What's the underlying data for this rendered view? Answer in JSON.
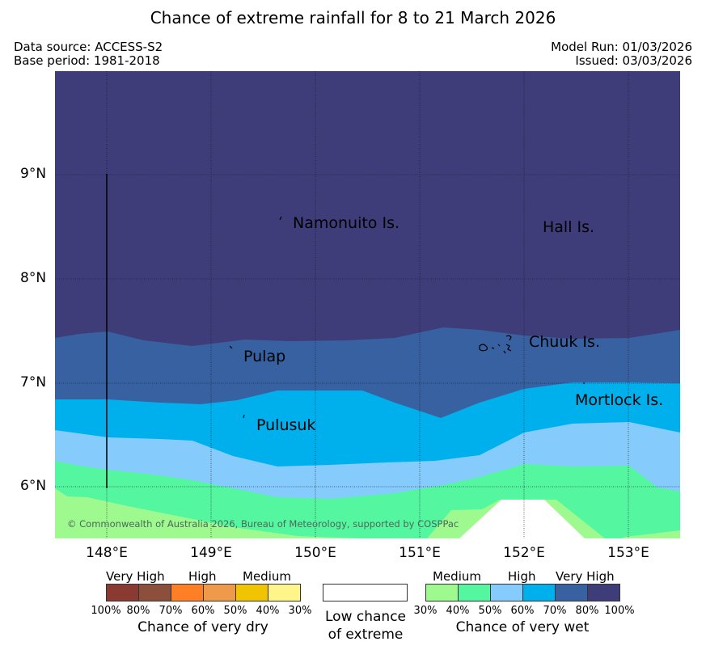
{
  "header": {
    "title": "Chance of extreme rainfall for 8 to 21 March 2026",
    "data_source": "Data source: ACCESS-S2",
    "base_period": "Base period: 1981-2018",
    "model_run": "Model Run: 01/03/2026",
    "issued": "Issued: 03/03/2026"
  },
  "map": {
    "lat_labels": [
      "9°N",
      "8°N",
      "7°N",
      "6°N"
    ],
    "lon_labels": [
      "148°E",
      "149°E",
      "150°E",
      "151°E",
      "152°E",
      "153°E"
    ],
    "places": {
      "namonuito": "Namonuito Is.",
      "hall": "Hall Is.",
      "pulap": "Pulap",
      "chuuk": "Chuuk Is.",
      "mortlock": "Mortlock Is.",
      "pulusuk": "Pulusuk"
    },
    "copyright": "© Commonwealth of Australia 2026, Bureau of Meteorology, supported by COSPPac"
  },
  "legend": {
    "dry": {
      "very_high": "Very High",
      "high": "High",
      "medium": "Medium",
      "percents": [
        "100%",
        "80%",
        "70%",
        "60%",
        "50%",
        "40%",
        "30%"
      ],
      "caption": "Chance of very dry",
      "colors": [
        "#8b3a32",
        "#8b4f3c",
        "#ff7f27",
        "#ee9a4a",
        "#f0c400",
        "#fff58a"
      ]
    },
    "low": {
      "caption_line1": "Low chance",
      "caption_line2": "of extreme",
      "color": "#ffffff"
    },
    "wet": {
      "medium": "Medium",
      "high": "High",
      "very_high": "Very High",
      "percents": [
        "30%",
        "40%",
        "50%",
        "60%",
        "70%",
        "80%",
        "100%"
      ],
      "caption": "Chance of very wet",
      "colors": [
        "#9ef98e",
        "#54f6a0",
        "#85cbfb",
        "#00b0ec",
        "#3761a0",
        "#3f3c7a"
      ]
    }
  }
}
